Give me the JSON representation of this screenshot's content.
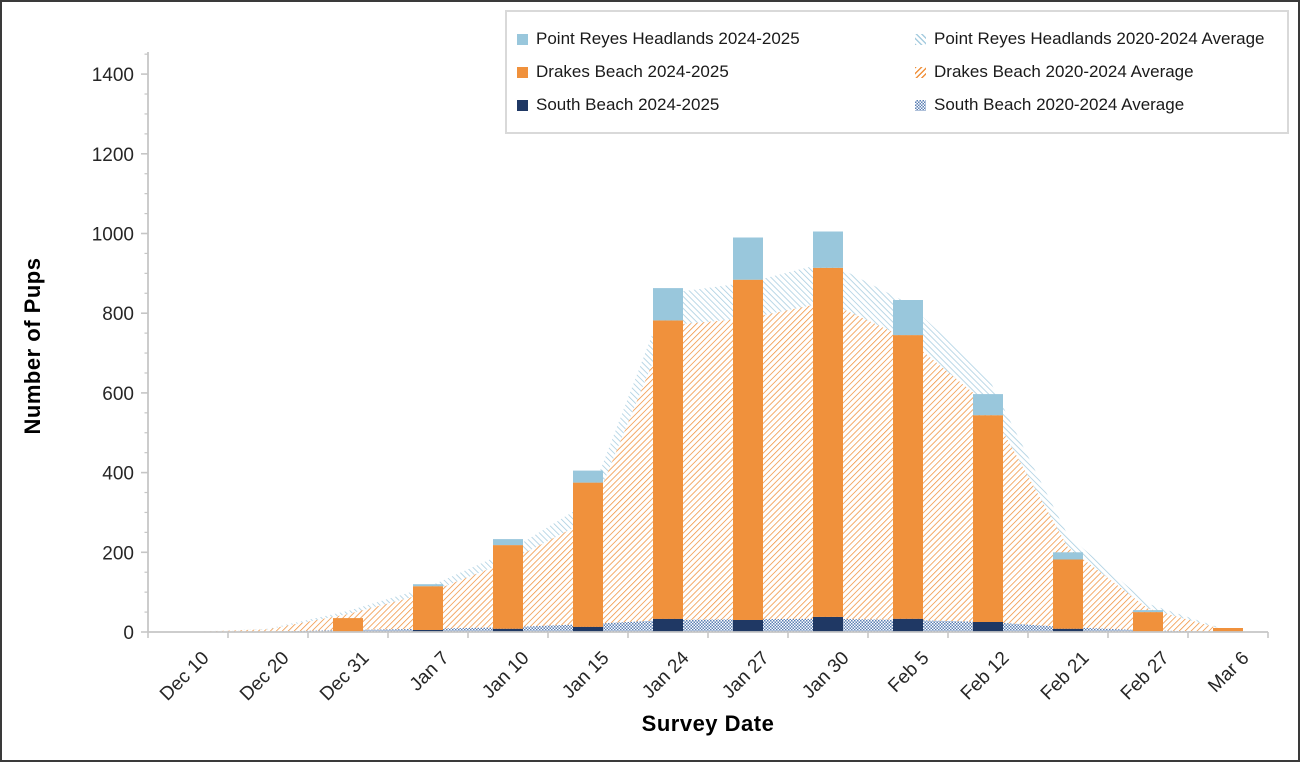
{
  "colors": {
    "prh": "#99C7DC",
    "drakes": "#F0913C",
    "south": "#1F3864",
    "prh_hatch": "#A6CCDF",
    "drakes_hatch": "#F0913C",
    "south_dots": "#5C80B4",
    "axis_line": "#C6C6C6",
    "tick_text": "#262626",
    "legend_border": "#D9D9D9"
  },
  "legend": {
    "items": [
      {
        "label": "Point Reyes Headlands 2024-2025",
        "swatch": "solid",
        "color_key": "prh"
      },
      {
        "label": "Point Reyes Headlands 2020-2024 Average",
        "swatch": "hatch-back",
        "color_key": "prh_hatch"
      },
      {
        "label": "Drakes Beach 2024-2025",
        "swatch": "solid",
        "color_key": "drakes"
      },
      {
        "label": "Drakes Beach 2020-2024 Average",
        "swatch": "hatch-forward",
        "color_key": "drakes_hatch"
      },
      {
        "label": "South Beach 2024-2025",
        "swatch": "solid",
        "color_key": "south"
      },
      {
        "label": "South Beach 2020-2024 Average",
        "swatch": "dots",
        "color_key": "south_dots"
      }
    ]
  },
  "chart_data": {
    "type": "bar",
    "subtype": "stacked columns (2024-2025 counts) overlaid on stacked hatched areas (2020-2024 averages)",
    "title": "",
    "xlabel": "Survey Date",
    "ylabel": "Number of Pups",
    "ylim": [
      0,
      1400
    ],
    "y_major_step": 200,
    "y_minor_step": 50,
    "grid": false,
    "legend_position": "top-right",
    "categories": [
      "Dec 10",
      "Dec 20",
      "Dec 31",
      "Jan 7",
      "Jan 10",
      "Jan 15",
      "Jan 24",
      "Jan 27",
      "Jan 30",
      "Feb 5",
      "Feb 12",
      "Feb 21",
      "Feb 27",
      "Mar 6"
    ],
    "series": [
      {
        "name": "South Beach 2024-2025",
        "render": "bar",
        "stack": "current-season",
        "color": "#1F3864",
        "values": [
          0,
          0,
          0,
          5,
          8,
          13,
          33,
          30,
          38,
          33,
          25,
          8,
          0,
          0
        ]
      },
      {
        "name": "Drakes Beach 2024-2025",
        "render": "bar",
        "stack": "current-season",
        "color": "#F0913C",
        "values": [
          0,
          0,
          35,
          110,
          210,
          362,
          749,
          854,
          876,
          712,
          519,
          174,
          50,
          10
        ]
      },
      {
        "name": "Point Reyes Headlands 2024-2025",
        "render": "bar",
        "stack": "current-season",
        "color": "#99C7DC",
        "values": [
          0,
          0,
          0,
          5,
          15,
          30,
          81,
          106,
          91,
          88,
          53,
          18,
          5,
          0
        ]
      },
      {
        "name": "South Beach 2020-2024 Average",
        "render": "area",
        "stack": "average",
        "pattern": "dots",
        "color": "#5C80B4",
        "values": [
          0,
          1,
          5,
          8,
          12,
          20,
          30,
          32,
          33,
          30,
          25,
          12,
          4,
          0
        ]
      },
      {
        "name": "Drakes Beach 2020-2024 Average",
        "render": "area",
        "stack": "average",
        "pattern": "hatch-forward",
        "color": "#F0913C",
        "values": [
          0,
          6,
          40,
          90,
          165,
          260,
          740,
          755,
          795,
          705,
          545,
          200,
          55,
          3
        ]
      },
      {
        "name": "Point Reyes Headlands 2020-2024 Average",
        "render": "area",
        "stack": "average",
        "pattern": "hatch-back",
        "color": "#A6CCDF",
        "values": [
          0,
          1,
          8,
          15,
          25,
          45,
          80,
          90,
          100,
          90,
          70,
          30,
          12,
          1
        ]
      }
    ],
    "bar_totals_2024_2025": [
      0,
      0,
      35,
      120,
      233,
      405,
      863,
      990,
      1005,
      833,
      597,
      200,
      55,
      10
    ],
    "average_totals_2020_2024": [
      0,
      8,
      53,
      113,
      202,
      325,
      850,
      877,
      928,
      825,
      640,
      242,
      71,
      4
    ]
  }
}
